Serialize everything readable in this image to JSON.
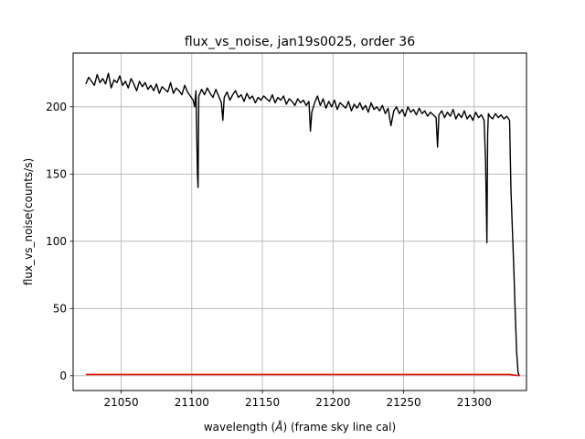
{
  "chart_data": {
    "type": "line",
    "title": "flux_vs_noise, jan19s0025, order 36",
    "xlabel": "wavelength",
    "xlabel_unit": "Å",
    "xlabel_suffix": "(frame sky line cal)",
    "ylabel": "flux_vs_noise(counts/s)",
    "xlim": [
      21016,
      21337
    ],
    "ylim": [
      -11,
      240
    ],
    "xticks": [
      21050,
      21100,
      21150,
      21200,
      21250,
      21300
    ],
    "yticks": [
      0,
      50,
      100,
      150,
      200
    ],
    "grid": true,
    "series": [
      {
        "color": "#000000",
        "x": [
          21025,
          21027,
          21029,
          21031,
          21033,
          21035,
          21037,
          21039,
          21041,
          21043,
          21045,
          21047,
          21049,
          21051,
          21053,
          21055,
          21057,
          21059,
          21061,
          21063,
          21065,
          21067,
          21069,
          21071,
          21073,
          21075,
          21077,
          21079,
          21081,
          21083,
          21085,
          21087,
          21089,
          21091,
          21093,
          21095,
          21097,
          21099,
          21101,
          21102,
          21103,
          21104,
          21104.5,
          21105,
          21107,
          21109,
          21111,
          21113,
          21115,
          21117,
          21119,
          21121,
          21122,
          21123,
          21125,
          21127,
          21129,
          21131,
          21133,
          21135,
          21137,
          21139,
          21141,
          21143,
          21145,
          21147,
          21149,
          21151,
          21153,
          21155,
          21157,
          21159,
          21161,
          21163,
          21165,
          21167,
          21169,
          21171,
          21173,
          21175,
          21177,
          21179,
          21181,
          21183,
          21184,
          21185,
          21187,
          21189,
          21191,
          21193,
          21195,
          21197,
          21199,
          21201,
          21203,
          21205,
          21207,
          21209,
          21211,
          21213,
          21215,
          21217,
          21219,
          21221,
          21223,
          21225,
          21227,
          21229,
          21231,
          21233,
          21235,
          21237,
          21239,
          21241,
          21243,
          21245,
          21247,
          21249,
          21251,
          21253,
          21255,
          21257,
          21259,
          21261,
          21263,
          21265,
          21267,
          21269,
          21271,
          21273,
          21274,
          21275,
          21277,
          21279,
          21281,
          21283,
          21285,
          21287,
          21289,
          21291,
          21293,
          21295,
          21297,
          21299,
          21301,
          21303,
          21305,
          21307,
          21308,
          21309,
          21309.5,
          21310,
          21311,
          21313,
          21315,
          21317,
          21319,
          21321,
          21323,
          21325,
          21326,
          21327,
          21328,
          21329,
          21330,
          21331,
          21331.5,
          21332
        ],
        "y": [
          217,
          222,
          219,
          216,
          224,
          218,
          221,
          217,
          225,
          214,
          220,
          218,
          223,
          216,
          219,
          214,
          221,
          217,
          212,
          219,
          215,
          218,
          213,
          216,
          212,
          217,
          210,
          215,
          213,
          211,
          218,
          210,
          214,
          212,
          209,
          216,
          211,
          208,
          205,
          200,
          212,
          150,
          140,
          208,
          213,
          209,
          214,
          210,
          207,
          213,
          208,
          203,
          190,
          207,
          211,
          205,
          209,
          212,
          207,
          209,
          204,
          210,
          206,
          208,
          203,
          207,
          205,
          208,
          206,
          204,
          209,
          203,
          207,
          205,
          208,
          202,
          206,
          204,
          201,
          206,
          203,
          205,
          201,
          204,
          182,
          196,
          203,
          208,
          201,
          206,
          199,
          204,
          200,
          205,
          198,
          203,
          201,
          199,
          204,
          197,
          202,
          199,
          203,
          198,
          201,
          196,
          203,
          198,
          200,
          197,
          201,
          195,
          199,
          186,
          197,
          200,
          195,
          198,
          193,
          200,
          196,
          198,
          194,
          199,
          195,
          197,
          193,
          196,
          194,
          192,
          170,
          194,
          197,
          192,
          196,
          193,
          198,
          191,
          195,
          192,
          197,
          191,
          194,
          190,
          196,
          192,
          194,
          190,
          160,
          99,
          180,
          195,
          193,
          191,
          195,
          192,
          194,
          191,
          193,
          190,
          138,
          110,
          80,
          48,
          18,
          3,
          1,
          0
        ]
      },
      {
        "color": "#e8140c",
        "x": [
          21025,
          21100,
          21200,
          21300,
          21325,
          21328,
          21330,
          21332
        ],
        "y": [
          1,
          1,
          1,
          1,
          1,
          0.5,
          0.3,
          0
        ]
      }
    ]
  }
}
